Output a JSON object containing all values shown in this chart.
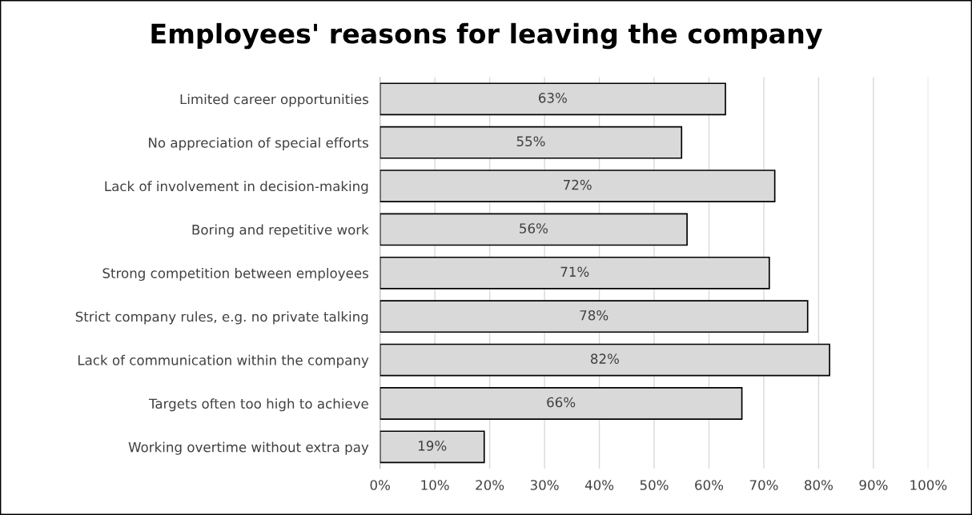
{
  "chart_data": {
    "type": "bar",
    "orientation": "horizontal",
    "title": "Employees' reasons for leaving the company",
    "categories": [
      "Limited career opportunities",
      "No appreciation of special efforts",
      "Lack of involvement in decision-making",
      "Boring and repetitive work",
      "Strong competition between employees",
      "Strict company rules, e.g. no private talking",
      "Lack of communication within the company",
      "Targets often too high to achieve",
      "Working overtime without extra pay"
    ],
    "values": [
      63,
      55,
      72,
      56,
      71,
      78,
      82,
      66,
      19
    ],
    "value_labels": [
      "63%",
      "55%",
      "72%",
      "56%",
      "71%",
      "78%",
      "82%",
      "66%",
      "19%"
    ],
    "color": "#d9d9d9",
    "xlim": [
      0,
      100
    ],
    "xticks": [
      {
        "value": 0,
        "label": "0%"
      },
      {
        "value": 10,
        "label": "10%"
      },
      {
        "value": 20,
        "label": "20%"
      },
      {
        "value": 30,
        "label": "30%"
      },
      {
        "value": 40,
        "label": "40%"
      },
      {
        "value": 50,
        "label": "50%"
      },
      {
        "value": 60,
        "label": "60%"
      },
      {
        "value": 70,
        "label": "70%"
      },
      {
        "value": 80,
        "label": "80%"
      },
      {
        "value": 90,
        "label": "90%"
      },
      {
        "value": 100,
        "label": "100%"
      }
    ],
    "grid": "x"
  }
}
